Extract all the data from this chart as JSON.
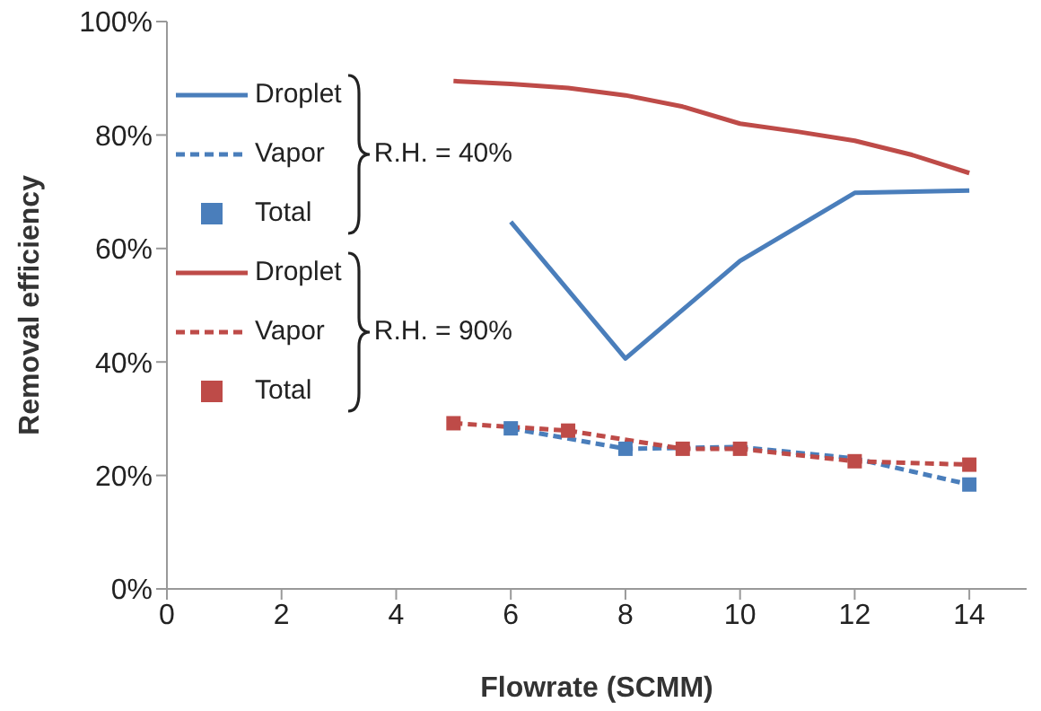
{
  "chart_data": {
    "type": "line",
    "xlabel": "Flowrate (SCMM)",
    "ylabel": "Removal efficiency",
    "xlim": [
      0,
      15
    ],
    "xticks": [
      0,
      2,
      4,
      6,
      8,
      10,
      12,
      14
    ],
    "ylim": [
      0,
      100
    ],
    "yticks": [
      {
        "value": 0,
        "label": "0%"
      },
      {
        "value": 20,
        "label": "20%"
      },
      {
        "value": 40,
        "label": "40%"
      },
      {
        "value": 60,
        "label": "60%"
      },
      {
        "value": 80,
        "label": "80%"
      },
      {
        "value": 100,
        "label": "100%"
      }
    ],
    "grid": false,
    "legend": "top left",
    "marker": "none",
    "annotations": [
      "R.H. = 40%",
      "R.H. = 90%"
    ],
    "series": [
      {
        "name": "Droplet",
        "line_style": "solid",
        "color": "#4a7ebb",
        "x": [
          6,
          8,
          10,
          12,
          14
        ],
        "values": [
          64.7,
          40.6,
          57.8,
          69.8,
          70.2
        ]
      },
      {
        "name": "Vapor",
        "line_style": "dashed",
        "color": "#4a7ebb",
        "x": [
          6,
          8,
          10,
          12,
          14
        ],
        "values": [
          28.3,
          24.7,
          25,
          23,
          18.4
        ]
      },
      {
        "name": "Total",
        "type": "scatter",
        "marker": "square",
        "color": "#4a7ebb",
        "x": [
          6,
          8,
          14
        ],
        "values": [
          28.3,
          24.7,
          18.4
        ]
      },
      {
        "name": "Droplet",
        "line_style": "solid",
        "color": "#be4b48",
        "x": [
          5,
          6,
          7,
          8,
          9,
          10,
          11,
          12,
          13,
          14
        ],
        "values": [
          89.5,
          89,
          88.3,
          87,
          85,
          82,
          80.6,
          79,
          76.5,
          73.3
        ]
      },
      {
        "name": "Vapor",
        "line_style": "dashed",
        "color": "#be4b48",
        "x": [
          5,
          7,
          9,
          10,
          12,
          14
        ],
        "values": [
          29.2,
          27.9,
          24.7,
          24.7,
          22.5,
          21.9
        ]
      },
      {
        "name": "Total",
        "type": "scatter",
        "marker": "square",
        "color": "#be4b48",
        "x": [
          5,
          7,
          9,
          10,
          12,
          14
        ],
        "values": [
          29.2,
          27.9,
          24.7,
          24.7,
          22.5,
          21.9
        ]
      }
    ]
  }
}
